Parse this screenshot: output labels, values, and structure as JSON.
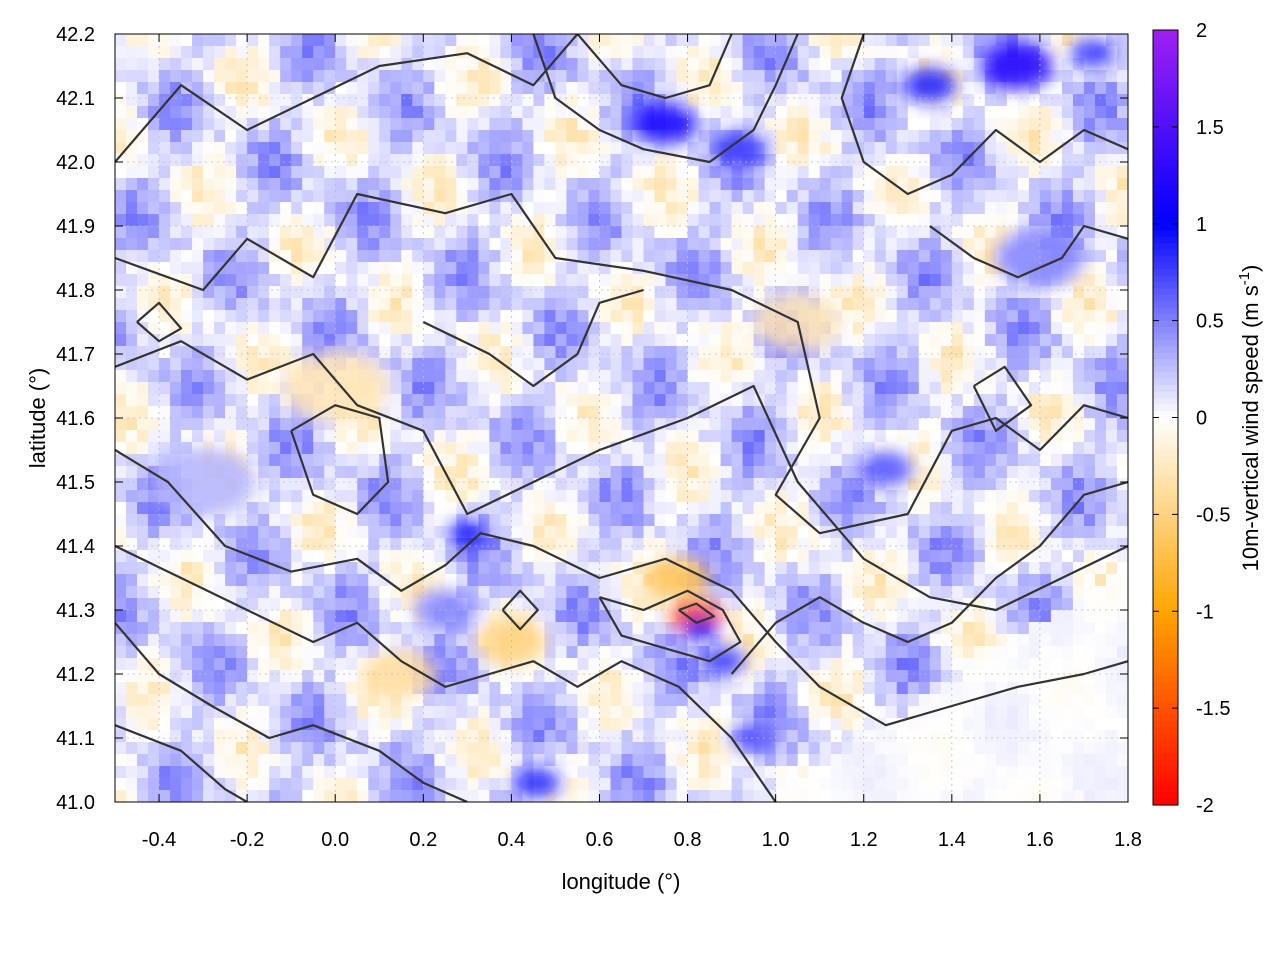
{
  "chart_data": {
    "type": "heatmap",
    "xlabel": "longitude (°)",
    "ylabel": "latitude (°)",
    "colorbar_label": "10m-vertical wind speed (m s",
    "colorbar_label_sup": "-1",
    "colorbar_label_close": ")",
    "xlim": [
      -0.5,
      1.8
    ],
    "ylim": [
      41.0,
      42.2
    ],
    "x_ticks": [
      -0.4,
      -0.2,
      0.0,
      0.2,
      0.4,
      0.6,
      0.8,
      1.0,
      1.2,
      1.4,
      1.6,
      1.8
    ],
    "x_tick_labels": [
      "-0.4",
      "-0.2",
      "0.0",
      "0.2",
      "0.4",
      "0.6",
      "0.8",
      "1.0",
      "1.2",
      "1.4",
      "1.6",
      "1.8"
    ],
    "y_ticks": [
      41.0,
      41.1,
      41.2,
      41.3,
      41.4,
      41.5,
      41.6,
      41.7,
      41.8,
      41.9,
      42.0,
      42.1,
      42.2
    ],
    "y_tick_labels": [
      "41.0",
      "41.1",
      "41.2",
      "41.3",
      "41.4",
      "41.5",
      "41.6",
      "41.7",
      "41.8",
      "41.9",
      "42.0",
      "42.1",
      "42.2"
    ],
    "color_range": [
      -2,
      2
    ],
    "colorbar_ticks": [
      -2,
      -1.5,
      -1,
      -0.5,
      0,
      0.5,
      1,
      1.5,
      2
    ],
    "colorbar_tick_labels": [
      "-2",
      "-1.5",
      "-1",
      "-0.5",
      "0",
      "0.5",
      "1",
      "1.5",
      "2"
    ],
    "colorscale": [
      {
        "v": -2.0,
        "color": "#ff0000"
      },
      {
        "v": -1.0,
        "color": "#ffa500"
      },
      {
        "v": 0.0,
        "color": "#ffffff"
      },
      {
        "v": 1.0,
        "color": "#0000ff"
      },
      {
        "v": 2.0,
        "color": "#a020f0"
      }
    ],
    "grid": true,
    "contour_color": "#333333",
    "features": [
      {
        "lon": 0.82,
        "lat": 41.29,
        "w": -1.6,
        "r": 0.06
      },
      {
        "lon": 0.83,
        "lat": 41.27,
        "w": 0.9,
        "r": 0.04
      },
      {
        "lon": 0.75,
        "lat": 42.06,
        "w": 1.1,
        "r": 0.07
      },
      {
        "lon": 0.92,
        "lat": 42.02,
        "w": 0.8,
        "r": 0.06
      },
      {
        "lon": 1.55,
        "lat": 42.15,
        "w": 1.2,
        "r": 0.08
      },
      {
        "lon": 1.35,
        "lat": 42.12,
        "w": 0.9,
        "r": 0.06
      },
      {
        "lon": 1.72,
        "lat": 42.17,
        "w": 0.8,
        "r": 0.05
      },
      {
        "lon": 0.3,
        "lat": 41.42,
        "w": 1.0,
        "r": 0.04
      },
      {
        "lon": 0.46,
        "lat": 41.03,
        "w": 0.9,
        "r": 0.05
      },
      {
        "lon": 0.88,
        "lat": 41.22,
        "w": 0.8,
        "r": 0.05
      },
      {
        "lon": 1.25,
        "lat": 41.52,
        "w": 0.7,
        "r": 0.06
      },
      {
        "lon": 0.78,
        "lat": 41.35,
        "w": -0.7,
        "r": 0.07
      },
      {
        "lon": 0.4,
        "lat": 41.25,
        "w": -0.5,
        "r": 0.08
      },
      {
        "lon": 0.0,
        "lat": 41.65,
        "w": -0.3,
        "r": 0.12
      },
      {
        "lon": 0.95,
        "lat": 41.1,
        "w": 0.7,
        "r": 0.05
      },
      {
        "lon": 0.25,
        "lat": 41.3,
        "w": 0.5,
        "r": 0.07
      },
      {
        "lon": 1.6,
        "lat": 41.85,
        "w": 0.5,
        "r": 0.1
      },
      {
        "lon": 0.15,
        "lat": 41.2,
        "w": -0.4,
        "r": 0.08
      },
      {
        "lon": -0.3,
        "lat": 41.5,
        "w": 0.3,
        "r": 0.12
      },
      {
        "lon": 1.05,
        "lat": 41.75,
        "w": -0.3,
        "r": 0.1
      }
    ],
    "contours": [
      [
        [
          -0.5,
          42.0
        ],
        [
          -0.35,
          42.12
        ],
        [
          -0.2,
          42.05
        ],
        [
          -0.05,
          42.1
        ],
        [
          0.1,
          42.15
        ],
        [
          0.3,
          42.17
        ],
        [
          0.45,
          42.12
        ],
        [
          0.55,
          42.2
        ]
      ],
      [
        [
          -0.5,
          41.85
        ],
        [
          -0.3,
          41.8
        ],
        [
          -0.2,
          41.88
        ],
        [
          -0.05,
          41.82
        ],
        [
          0.05,
          41.95
        ],
        [
          0.25,
          41.92
        ],
        [
          0.4,
          41.95
        ],
        [
          0.5,
          41.85
        ],
        [
          0.7,
          41.83
        ],
        [
          0.9,
          41.8
        ],
        [
          1.05,
          41.75
        ],
        [
          1.1,
          41.6
        ],
        [
          1.0,
          41.48
        ],
        [
          1.1,
          41.42
        ],
        [
          1.3,
          41.45
        ],
        [
          1.4,
          41.58
        ],
        [
          1.5,
          41.6
        ],
        [
          1.6,
          41.55
        ],
        [
          1.7,
          41.62
        ],
        [
          1.8,
          41.6
        ]
      ],
      [
        [
          -0.5,
          41.68
        ],
        [
          -0.35,
          41.72
        ],
        [
          -0.2,
          41.66
        ],
        [
          -0.05,
          41.7
        ],
        [
          0.05,
          41.62
        ],
        [
          0.2,
          41.58
        ],
        [
          0.3,
          41.45
        ],
        [
          0.45,
          41.5
        ],
        [
          0.6,
          41.55
        ],
        [
          0.8,
          41.6
        ],
        [
          0.95,
          41.65
        ],
        [
          1.05,
          41.5
        ],
        [
          1.2,
          41.38
        ],
        [
          1.35,
          41.32
        ],
        [
          1.5,
          41.3
        ],
        [
          1.65,
          41.35
        ],
        [
          1.8,
          41.4
        ]
      ],
      [
        [
          -0.5,
          41.55
        ],
        [
          -0.38,
          41.5
        ],
        [
          -0.25,
          41.4
        ],
        [
          -0.1,
          41.36
        ],
        [
          0.05,
          41.38
        ],
        [
          0.15,
          41.33
        ],
        [
          0.25,
          41.37
        ],
        [
          0.33,
          41.42
        ],
        [
          0.45,
          41.4
        ],
        [
          0.6,
          41.35
        ],
        [
          0.75,
          41.38
        ],
        [
          0.9,
          41.33
        ],
        [
          1.0,
          41.25
        ],
        [
          1.1,
          41.18
        ],
        [
          1.25,
          41.12
        ],
        [
          1.4,
          41.15
        ],
        [
          1.55,
          41.18
        ],
        [
          1.7,
          41.2
        ],
        [
          1.8,
          41.22
        ]
      ],
      [
        [
          -0.5,
          41.4
        ],
        [
          -0.35,
          41.35
        ],
        [
          -0.2,
          41.3
        ],
        [
          -0.05,
          41.25
        ],
        [
          0.05,
          41.28
        ],
        [
          0.15,
          41.22
        ],
        [
          0.25,
          41.18
        ],
        [
          0.35,
          41.2
        ],
        [
          0.45,
          41.22
        ],
        [
          0.55,
          41.18
        ],
        [
          0.65,
          41.22
        ],
        [
          0.78,
          41.18
        ],
        [
          0.9,
          41.1
        ],
        [
          0.98,
          41.02
        ],
        [
          1.0,
          41.0
        ]
      ],
      [
        [
          -0.5,
          41.28
        ],
        [
          -0.4,
          41.2
        ],
        [
          -0.28,
          41.15
        ],
        [
          -0.15,
          41.1
        ],
        [
          -0.05,
          41.12
        ],
        [
          0.1,
          41.08
        ],
        [
          0.2,
          41.03
        ],
        [
          0.3,
          41.0
        ]
      ],
      [
        [
          -0.5,
          41.12
        ],
        [
          -0.35,
          41.08
        ],
        [
          -0.25,
          41.02
        ],
        [
          -0.2,
          41.0
        ]
      ],
      [
        [
          0.45,
          42.2
        ],
        [
          0.5,
          42.1
        ],
        [
          0.6,
          42.05
        ],
        [
          0.7,
          42.02
        ],
        [
          0.85,
          42.0
        ],
        [
          0.95,
          42.05
        ],
        [
          1.0,
          42.12
        ],
        [
          1.05,
          42.2
        ]
      ],
      [
        [
          0.55,
          42.2
        ],
        [
          0.65,
          42.12
        ],
        [
          0.75,
          42.1
        ],
        [
          0.85,
          42.12
        ],
        [
          0.9,
          42.2
        ]
      ],
      [
        [
          1.2,
          42.2
        ],
        [
          1.15,
          42.1
        ],
        [
          1.2,
          42.0
        ],
        [
          1.3,
          41.95
        ],
        [
          1.4,
          41.98
        ],
        [
          1.5,
          42.05
        ],
        [
          1.6,
          42.0
        ],
        [
          1.7,
          42.05
        ],
        [
          1.8,
          42.02
        ]
      ],
      [
        [
          1.35,
          41.9
        ],
        [
          1.45,
          41.85
        ],
        [
          1.55,
          41.82
        ],
        [
          1.65,
          41.85
        ],
        [
          1.7,
          41.9
        ],
        [
          1.8,
          41.88
        ]
      ],
      [
        [
          0.2,
          41.75
        ],
        [
          0.35,
          41.7
        ],
        [
          0.45,
          41.65
        ],
        [
          0.55,
          41.7
        ],
        [
          0.6,
          41.78
        ],
        [
          0.7,
          41.8
        ]
      ],
      [
        [
          0.9,
          41.2
        ],
        [
          1.0,
          41.28
        ],
        [
          1.1,
          41.32
        ],
        [
          1.2,
          41.28
        ],
        [
          1.3,
          41.25
        ],
        [
          1.4,
          41.28
        ],
        [
          1.5,
          41.35
        ],
        [
          1.6,
          41.4
        ],
        [
          1.7,
          41.48
        ],
        [
          1.8,
          41.5
        ]
      ],
      [
        [
          0.6,
          41.32
        ],
        [
          0.7,
          41.3
        ],
        [
          0.8,
          41.33
        ],
        [
          0.88,
          41.3
        ],
        [
          0.92,
          41.25
        ],
        [
          0.85,
          41.22
        ],
        [
          0.75,
          41.24
        ],
        [
          0.65,
          41.26
        ],
        [
          0.6,
          41.32
        ]
      ],
      [
        [
          0.78,
          41.3
        ],
        [
          0.82,
          41.28
        ],
        [
          0.86,
          41.29
        ],
        [
          0.82,
          41.31
        ],
        [
          0.78,
          41.3
        ]
      ],
      [
        [
          0.38,
          41.3
        ],
        [
          0.42,
          41.33
        ],
        [
          0.46,
          41.3
        ],
        [
          0.42,
          41.27
        ],
        [
          0.38,
          41.3
        ]
      ],
      [
        [
          -0.1,
          41.58
        ],
        [
          0.0,
          41.62
        ],
        [
          0.1,
          41.6
        ],
        [
          0.12,
          41.5
        ],
        [
          0.05,
          41.45
        ],
        [
          -0.05,
          41.48
        ],
        [
          -0.1,
          41.58
        ]
      ],
      [
        [
          1.45,
          41.65
        ],
        [
          1.52,
          41.68
        ],
        [
          1.58,
          41.62
        ],
        [
          1.5,
          41.58
        ],
        [
          1.45,
          41.65
        ]
      ],
      [
        [
          -0.45,
          41.75
        ],
        [
          -0.4,
          41.72
        ],
        [
          -0.35,
          41.74
        ],
        [
          -0.4,
          41.78
        ],
        [
          -0.45,
          41.75
        ]
      ]
    ]
  }
}
